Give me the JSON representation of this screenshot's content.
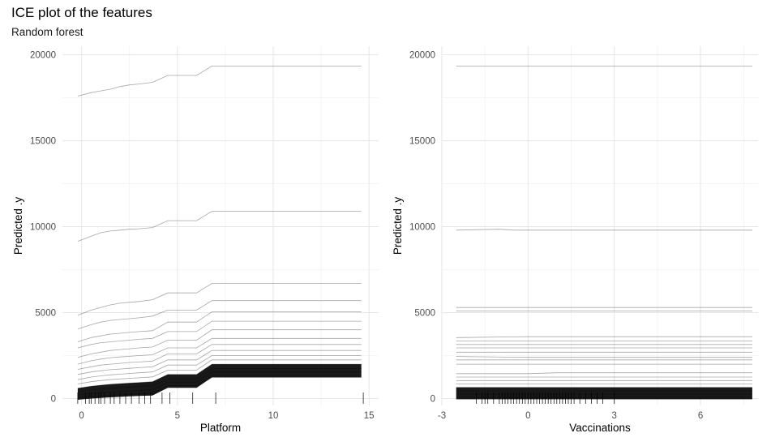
{
  "title": "ICE plot of the features",
  "subtitle": "Random forest",
  "chart_data": [
    {
      "type": "line",
      "xlabel": "Platform",
      "ylabel": "Predicted .y",
      "xlim": [
        -1,
        15.5
      ],
      "ylim": [
        -400,
        20500
      ],
      "xticks": [
        0,
        5,
        10,
        15
      ],
      "yticks": [
        0,
        5000,
        10000,
        15000,
        20000
      ],
      "grid": true,
      "series": [
        {
          "x": [
            -0.2,
            0.5,
            1,
            1.5,
            2,
            2.5,
            3,
            3.7,
            4.5,
            5,
            6,
            6.8,
            7,
            14.6
          ],
          "y": [
            17600,
            17800,
            17900,
            18000,
            18150,
            18250,
            18300,
            18400,
            18800,
            18800,
            18800,
            19350,
            19350,
            19350
          ]
        },
        {
          "x": [
            -0.2,
            0.5,
            1,
            1.5,
            2,
            2.5,
            3,
            3.7,
            4.5,
            5,
            6,
            6.8,
            7,
            14.6
          ],
          "y": [
            9150,
            9450,
            9650,
            9750,
            9800,
            9850,
            9880,
            9950,
            10350,
            10350,
            10350,
            10900,
            10900,
            10900
          ]
        },
        {
          "x": [
            -0.2,
            0.5,
            1,
            1.5,
            2,
            2.5,
            3,
            3.7,
            4.5,
            5,
            6,
            6.8,
            7,
            14.6
          ],
          "y": [
            4850,
            5150,
            5300,
            5450,
            5550,
            5600,
            5650,
            5750,
            6150,
            6150,
            6150,
            6700,
            6700,
            6700
          ]
        },
        {
          "x": [
            -0.2,
            0.5,
            1,
            1.5,
            2,
            2.5,
            3,
            3.7,
            4.5,
            5,
            6,
            6.8,
            7,
            14.6
          ],
          "y": [
            4050,
            4300,
            4450,
            4550,
            4600,
            4650,
            4700,
            4800,
            5150,
            5150,
            5150,
            5700,
            5700,
            5700
          ]
        },
        {
          "x": [
            -0.2,
            0.5,
            1,
            1.5,
            2,
            2.5,
            3,
            3.7,
            4.5,
            5,
            6,
            6.8,
            7,
            14.6
          ],
          "y": [
            3300,
            3550,
            3650,
            3750,
            3800,
            3850,
            3900,
            3950,
            4450,
            4450,
            4450,
            5050,
            5050,
            5050
          ]
        },
        {
          "x": [
            -0.2,
            0.5,
            1,
            1.5,
            2,
            2.5,
            3,
            3.7,
            4.5,
            5,
            6,
            6.8,
            7,
            14.6
          ],
          "y": [
            2950,
            3150,
            3250,
            3300,
            3350,
            3400,
            3450,
            3500,
            3900,
            3900,
            3900,
            4500,
            4500,
            4500
          ]
        },
        {
          "x": [
            -0.2,
            0.5,
            1,
            1.5,
            2,
            2.5,
            3,
            3.7,
            4.5,
            5,
            6,
            6.8,
            7,
            14.6
          ],
          "y": [
            2400,
            2600,
            2700,
            2800,
            2850,
            2900,
            2950,
            3000,
            3400,
            3400,
            3400,
            4000,
            4000,
            4000
          ]
        },
        {
          "x": [
            -0.2,
            0.5,
            1,
            1.5,
            2,
            2.5,
            3,
            3.7,
            4.5,
            5,
            6,
            6.8,
            7,
            14.6
          ],
          "y": [
            2000,
            2200,
            2300,
            2380,
            2420,
            2460,
            2500,
            2550,
            2950,
            2950,
            2950,
            3500,
            3500,
            3500
          ]
        },
        {
          "x": [
            -0.2,
            0.5,
            1,
            1.5,
            2,
            2.5,
            3,
            3.7,
            4.5,
            5,
            6,
            6.8,
            7,
            14.6
          ],
          "y": [
            1700,
            1850,
            1950,
            2000,
            2050,
            2100,
            2130,
            2180,
            2600,
            2600,
            2600,
            3150,
            3150,
            3150
          ]
        },
        {
          "x": [
            -0.2,
            0.5,
            1,
            1.5,
            2,
            2.5,
            3,
            3.7,
            4.5,
            5,
            6,
            6.8,
            7,
            14.6
          ],
          "y": [
            1400,
            1550,
            1620,
            1680,
            1720,
            1760,
            1800,
            1850,
            2250,
            2250,
            2250,
            2800,
            2800,
            2800
          ]
        },
        {
          "x": [
            -0.2,
            0.5,
            1,
            1.5,
            2,
            2.5,
            3,
            3.7,
            4.5,
            5,
            6,
            6.8,
            7,
            14.6
          ],
          "y": [
            1100,
            1250,
            1320,
            1380,
            1420,
            1460,
            1500,
            1550,
            1950,
            1950,
            1950,
            2500,
            2500,
            2500
          ]
        },
        {
          "x": [
            -0.2,
            0.5,
            1,
            1.5,
            2,
            2.5,
            3,
            3.7,
            4.5,
            5,
            6,
            6.8,
            7,
            14.6
          ],
          "y": [
            850,
            980,
            1050,
            1100,
            1140,
            1180,
            1210,
            1260,
            1650,
            1650,
            1650,
            2250,
            2250,
            2250
          ]
        },
        {
          "x": [
            -0.2,
            0.5,
            1,
            1.5,
            2,
            2.5,
            3,
            3.7,
            4.5,
            5,
            6,
            6.8,
            7,
            14.6
          ],
          "y": [
            600,
            720,
            780,
            830,
            870,
            900,
            930,
            980,
            1400,
            1400,
            1400,
            2000,
            2000,
            2000
          ]
        },
        {
          "x": [
            -0.2,
            0.5,
            1,
            1.5,
            2,
            2.5,
            3,
            3.7,
            4.5,
            5,
            6,
            6.8,
            7,
            14.6
          ],
          "y": [
            400,
            500,
            560,
            600,
            640,
            670,
            700,
            750,
            1150,
            1150,
            1150,
            1750,
            1750,
            1750
          ]
        },
        {
          "x": [
            -0.2,
            0.5,
            1,
            1.5,
            2,
            2.5,
            3,
            3.7,
            4.5,
            5,
            6,
            6.8,
            7,
            14.6
          ],
          "y": [
            200,
            300,
            350,
            390,
            420,
            450,
            480,
            520,
            950,
            950,
            950,
            1550,
            1550,
            1550
          ]
        },
        {
          "x": [
            -0.2,
            0.5,
            1,
            1.5,
            2,
            2.5,
            3,
            3.7,
            4.5,
            5,
            6,
            6.8,
            7,
            14.6
          ],
          "y": [
            50,
            120,
            160,
            190,
            220,
            250,
            270,
            300,
            750,
            750,
            750,
            1350,
            1350,
            1350
          ]
        }
      ],
      "rug": [
        -0.2,
        0.2,
        0.4,
        0.5,
        0.7,
        0.9,
        1,
        1.2,
        1.5,
        1.7,
        2,
        2.3,
        2.6,
        3,
        3.3,
        3.6,
        4.2,
        4.6,
        5.8,
        7,
        14.7
      ]
    },
    {
      "type": "line",
      "xlabel": "Vaccinations",
      "ylabel": "Predicted .y",
      "xlim": [
        -3,
        8
      ],
      "ylim": [
        -400,
        20500
      ],
      "xticks": [
        -3,
        0,
        3,
        6
      ],
      "yticks": [
        0,
        5000,
        10000,
        15000,
        20000
      ],
      "grid": true,
      "series": [
        {
          "x": [
            -2.5,
            7.8
          ],
          "y": [
            19350,
            19350
          ]
        },
        {
          "x": [
            -2.5,
            -1,
            -0.5,
            7.8
          ],
          "y": [
            9800,
            9850,
            9800,
            9800
          ]
        },
        {
          "x": [
            -2.5,
            7.8
          ],
          "y": [
            5300,
            5300
          ]
        },
        {
          "x": [
            -2.5,
            7.8
          ],
          "y": [
            5100,
            5100
          ]
        },
        {
          "x": [
            -2.5,
            0,
            7.8
          ],
          "y": [
            3550,
            3600,
            3600
          ]
        },
        {
          "x": [
            -2.5,
            7.8
          ],
          "y": [
            3350,
            3350
          ]
        },
        {
          "x": [
            -2.5,
            7.8
          ],
          "y": [
            3150,
            3150
          ]
        },
        {
          "x": [
            -2.5,
            7.8
          ],
          "y": [
            2950,
            2950
          ]
        },
        {
          "x": [
            -2.5,
            7.8
          ],
          "y": [
            2700,
            2700
          ]
        },
        {
          "x": [
            -2.5,
            0,
            7.8
          ],
          "y": [
            2450,
            2400,
            2400
          ]
        },
        {
          "x": [
            -2.5,
            7.8
          ],
          "y": [
            2250,
            2250
          ]
        },
        {
          "x": [
            -2.5,
            7.8
          ],
          "y": [
            2000,
            2000
          ]
        },
        {
          "x": [
            -2.5,
            0,
            1,
            7.8
          ],
          "y": [
            1450,
            1450,
            1500,
            1500
          ]
        },
        {
          "x": [
            -2.5,
            7.8
          ],
          "y": [
            1250,
            1250
          ]
        },
        {
          "x": [
            -2.5,
            7.8
          ],
          "y": [
            1050,
            1050
          ]
        },
        {
          "x": [
            -2.5,
            7.8
          ],
          "y": [
            850,
            850
          ]
        },
        {
          "x": [
            -2.5,
            7.8
          ],
          "y": [
            650,
            650
          ]
        },
        {
          "x": [
            -2.5,
            7.8
          ],
          "y": [
            450,
            450
          ]
        },
        {
          "x": [
            -2.5,
            7.8
          ],
          "y": [
            250,
            250
          ]
        },
        {
          "x": [
            -2.5,
            7.8
          ],
          "y": [
            80,
            80
          ]
        }
      ],
      "rug": [
        -1.8,
        -1.6,
        -1.5,
        -1.4,
        -1.2,
        -1.0,
        -0.9,
        -0.8,
        -0.7,
        -0.6,
        -0.5,
        -0.4,
        -0.3,
        -0.2,
        -0.1,
        0,
        0.1,
        0.2,
        0.3,
        0.4,
        0.5,
        0.6,
        0.7,
        0.8,
        0.9,
        1.0,
        1.1,
        1.2,
        1.3,
        1.4,
        1.5,
        1.6,
        1.8,
        2.0,
        2.2,
        2.4,
        2.6,
        3.0
      ]
    }
  ]
}
